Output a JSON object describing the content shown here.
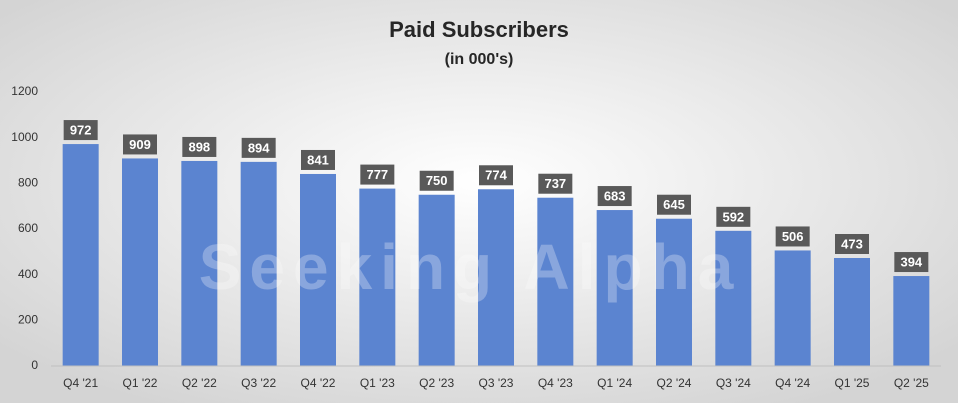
{
  "chart_data": {
    "type": "bar",
    "title": "Paid Subscribers",
    "subtitle": "(in 000's)",
    "watermark": "Seeking Alpha",
    "categories": [
      "Q4 '21",
      "Q1 '22",
      "Q2 '22",
      "Q3 '22",
      "Q4 '22",
      "Q1 '23",
      "Q2 '23",
      "Q3 '23",
      "Q4 '23",
      "Q1 '24",
      "Q2 '24",
      "Q3 '24",
      "Q4 '24",
      "Q1 '25",
      "Q2 '25"
    ],
    "values": [
      972,
      909,
      898,
      894,
      841,
      777,
      750,
      774,
      737,
      683,
      645,
      592,
      506,
      473,
      394
    ],
    "color": "#5b84d0",
    "label_color": "#595959",
    "ylim": [
      0,
      1200
    ],
    "yticks": [
      0,
      200,
      400,
      600,
      800,
      1000,
      1200
    ],
    "grid": false
  }
}
